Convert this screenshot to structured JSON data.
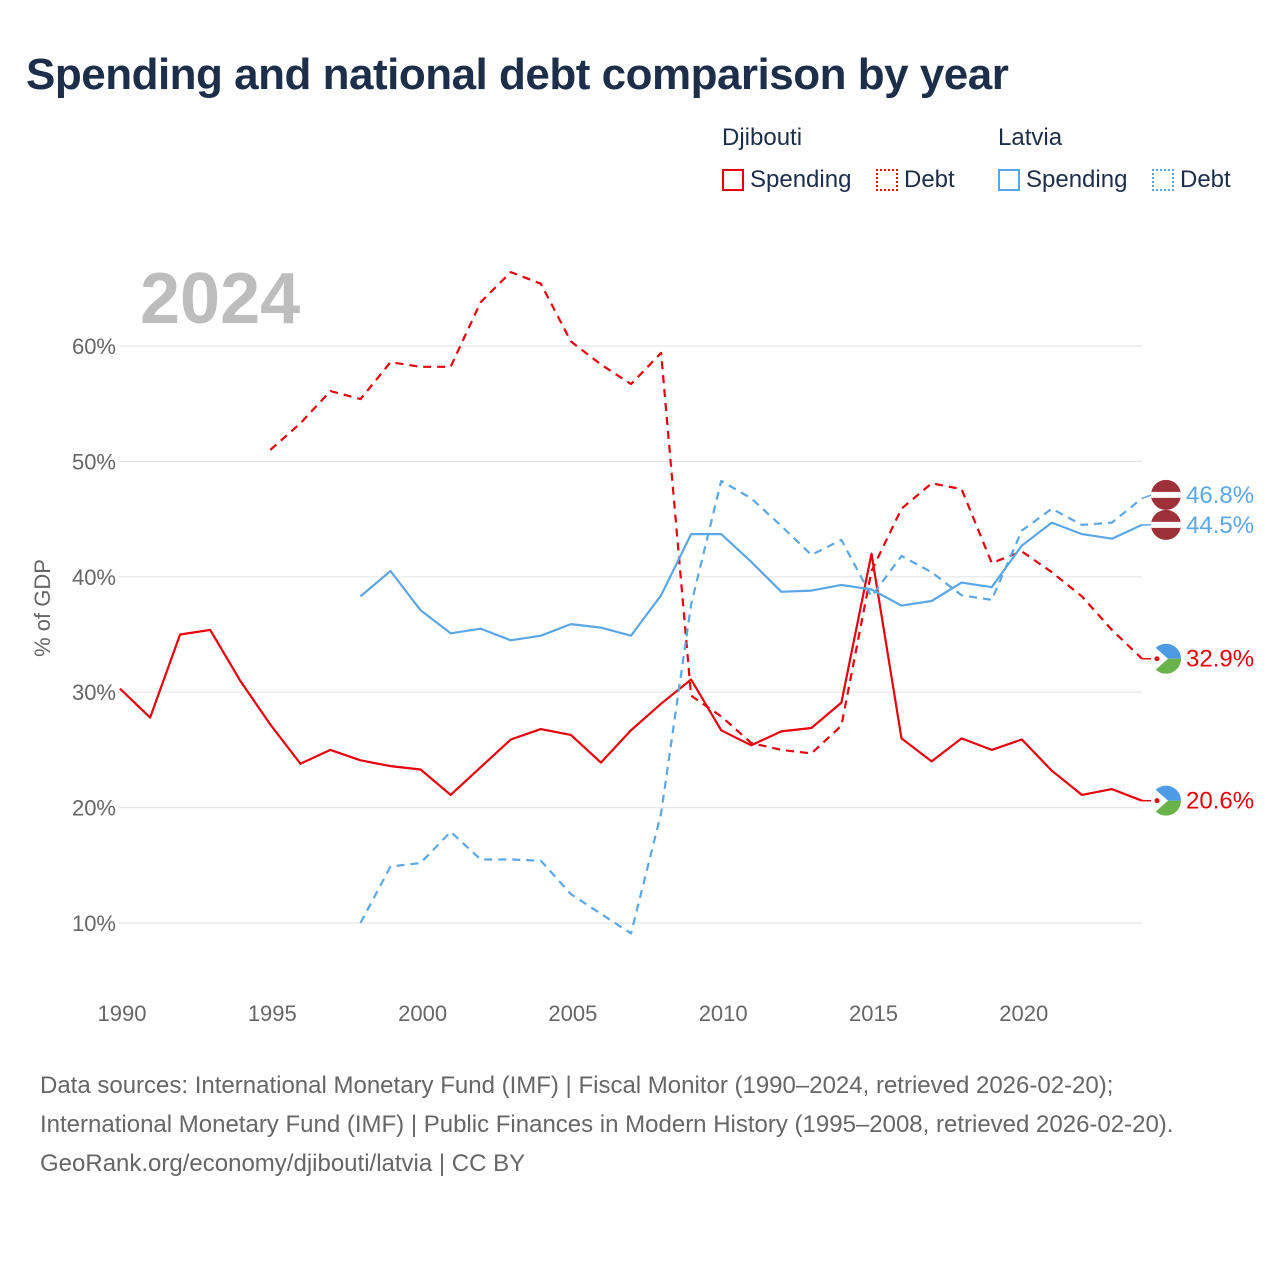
{
  "title": "Spending and national debt comparison by year",
  "year_label": "2024",
  "legend": {
    "groups": [
      {
        "name": "Djibouti",
        "items": [
          {
            "label": "Spending",
            "style": "solid",
            "color": "#e8000b"
          },
          {
            "label": "Debt",
            "style": "dotted",
            "color": "#e8000b"
          }
        ]
      },
      {
        "name": "Latvia",
        "items": [
          {
            "label": "Spending",
            "style": "solid",
            "color": "#5ba7e6"
          },
          {
            "label": "Debt",
            "style": "dotted",
            "color": "#5ba7e6"
          }
        ]
      }
    ]
  },
  "colors": {
    "djibouti": "#e8000b",
    "latvia": "#5ba7e6",
    "grid": "#e6e6e6",
    "axis_text": "#666666"
  },
  "chart_data": {
    "type": "line",
    "title": "Spending and national debt comparison by year",
    "xlabel": "",
    "ylabel": "% of GDP",
    "xlim": [
      1990,
      2024
    ],
    "ylim": [
      10,
      60
    ],
    "x_ticks": [
      1990,
      1995,
      2000,
      2005,
      2010,
      2015,
      2020
    ],
    "y_ticks": [
      10,
      20,
      30,
      40,
      50,
      60
    ],
    "y_tick_labels": [
      "10%",
      "20%",
      "30%",
      "40%",
      "50%",
      "60%"
    ],
    "series": [
      {
        "name": "Djibouti Spending",
        "country": "Djibouti",
        "kind": "Spending",
        "dash": "solid",
        "color": "#e8000b",
        "x": [
          1990,
          1991,
          1992,
          1993,
          1994,
          1995,
          1996,
          1997,
          1998,
          1999,
          2000,
          2001,
          2002,
          2003,
          2004,
          2005,
          2006,
          2007,
          2008,
          2009,
          2010,
          2011,
          2012,
          2013,
          2014,
          2015,
          2016,
          2017,
          2018,
          2019,
          2020,
          2021,
          2022,
          2023,
          2024
        ],
        "y": [
          30.3,
          27.8,
          35.0,
          35.4,
          31.0,
          27.2,
          23.8,
          25.0,
          24.1,
          23.6,
          23.3,
          21.1,
          23.5,
          25.9,
          26.8,
          26.3,
          23.9,
          26.7,
          29.0,
          31.1,
          26.7,
          25.4,
          26.6,
          26.9,
          29.1,
          42.0,
          26.0,
          24.0,
          26.0,
          25.0,
          25.9,
          23.2,
          21.1,
          21.6,
          20.6
        ],
        "end_label": "20.6%"
      },
      {
        "name": "Djibouti Debt",
        "country": "Djibouti",
        "kind": "Debt",
        "dash": "dashed",
        "color": "#e8000b",
        "x": [
          1995,
          1996,
          1997,
          1998,
          1999,
          2000,
          2001,
          2002,
          2003,
          2004,
          2005,
          2006,
          2007,
          2008,
          2009,
          2010,
          2011,
          2012,
          2013,
          2014,
          2015,
          2016,
          2017,
          2018,
          2019,
          2020,
          2021,
          2022,
          2023,
          2024
        ],
        "y": [
          51.0,
          53.3,
          56.1,
          55.4,
          58.6,
          58.2,
          58.2,
          63.8,
          66.4,
          65.4,
          60.4,
          58.4,
          56.7,
          59.4,
          29.7,
          27.9,
          25.6,
          25.0,
          24.7,
          27.1,
          40.5,
          45.9,
          48.1,
          47.6,
          41.2,
          42.2,
          40.4,
          38.3,
          35.4,
          32.9
        ],
        "end_label": "32.9%"
      },
      {
        "name": "Latvia Spending",
        "country": "Latvia",
        "kind": "Spending",
        "dash": "solid",
        "color": "#5ba7e6",
        "x": [
          1998,
          1999,
          2000,
          2001,
          2002,
          2003,
          2004,
          2005,
          2006,
          2007,
          2008,
          2009,
          2010,
          2011,
          2012,
          2013,
          2014,
          2015,
          2016,
          2017,
          2018,
          2019,
          2020,
          2021,
          2022,
          2023,
          2024
        ],
        "y": [
          38.3,
          40.5,
          37.1,
          35.1,
          35.5,
          34.5,
          34.9,
          35.9,
          35.6,
          34.9,
          38.4,
          43.7,
          43.7,
          41.3,
          38.7,
          38.8,
          39.3,
          38.9,
          37.5,
          37.9,
          39.5,
          39.1,
          42.7,
          44.7,
          43.7,
          43.3,
          44.5
        ],
        "end_label": "44.5%"
      },
      {
        "name": "Latvia Debt",
        "country": "Latvia",
        "kind": "Debt",
        "dash": "dashed",
        "color": "#5ba7e6",
        "x": [
          1998,
          1999,
          2000,
          2001,
          2002,
          2003,
          2004,
          2005,
          2006,
          2007,
          2008,
          2009,
          2010,
          2011,
          2012,
          2013,
          2014,
          2015,
          2016,
          2017,
          2018,
          2019,
          2020,
          2021,
          2022,
          2023,
          2024
        ],
        "y": [
          10.0,
          14.9,
          15.2,
          17.9,
          15.5,
          15.5,
          15.4,
          12.5,
          10.8,
          9.1,
          19.5,
          37.6,
          48.3,
          46.8,
          44.4,
          41.9,
          43.2,
          38.3,
          41.8,
          40.4,
          38.4,
          38.0,
          44.0,
          45.9,
          44.5,
          44.7,
          46.8
        ],
        "end_label": "46.8%"
      }
    ]
  },
  "footer": {
    "sources": "Data sources: International Monetary Fund (IMF) | Fiscal Monitor (1990–2024, retrieved 2026-02-20); International Monetary Fund (IMF) | Public Finances in Modern History (1995–2008, retrieved 2026-02-20).",
    "credit": "GeoRank.org/economy/djibouti/latvia | CC BY"
  }
}
